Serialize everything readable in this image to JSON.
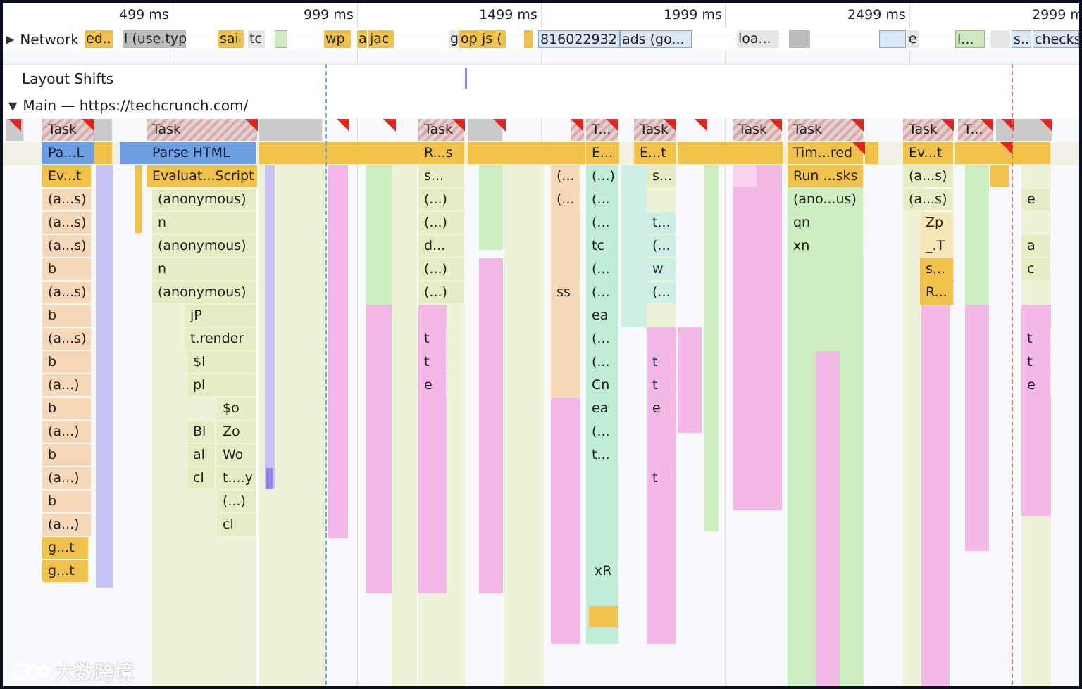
{
  "ruler": {
    "ticks": [
      "499 ms",
      "999 ms",
      "1499 ms",
      "1999 ms",
      "2499 ms",
      "2999 ms"
    ]
  },
  "tracks": {
    "network": "Network",
    "layout_shifts": "Layout Shifts",
    "main": "Main — https://techcrunch.com/"
  },
  "network_bars": [
    "ed...",
    "l (use.typ",
    "sai",
    "tc",
    "wp",
    "a",
    "jac",
    "g",
    "op",
    "js (",
    "816022932",
    "ads (go...",
    "loa...",
    "e",
    "l...",
    "s..",
    "checks"
  ],
  "flame": {
    "task_label": "Task",
    "task_short": "T...",
    "row1": [
      "Pa...L",
      "Parse HTML",
      "R...s",
      "E...",
      "E...t",
      "Tim...red",
      "Ev...t"
    ],
    "col_a": [
      "Ev...t",
      "(a...s)",
      "(a...s)",
      "(a...s)",
      "b",
      "(a...s)",
      "b",
      "(a...s)",
      "b",
      "(a...)",
      "b",
      "(a...)",
      "b",
      "(a...)",
      "b",
      "(a...)",
      "g...t",
      "g...t"
    ],
    "col_b": [
      "Evaluat...Script",
      "(anonymous)",
      "n",
      "(anonymous)",
      "n",
      "(anonymous)",
      "jP",
      "t.render",
      "$l",
      "pl",
      "$o",
      "Bl",
      "Zo",
      "al",
      "Wo",
      "cl",
      "t....y",
      "(...)",
      "cl"
    ],
    "col_c": [
      "s...",
      "(...)",
      "(...)",
      "d...",
      "(...)",
      "(...)",
      "t",
      "t",
      "e"
    ],
    "col_d": [
      "(...",
      "(...",
      "ss"
    ],
    "col_e": [
      "(...)",
      "(...",
      "(...",
      "tc",
      "(...",
      "(...",
      "ea",
      "(...",
      "(...",
      "Cn",
      "ea",
      "(...",
      "t...",
      "xR"
    ],
    "col_f": [
      "s...",
      "t...",
      "(...",
      "w",
      "(...",
      "t",
      "t",
      "e",
      "t"
    ],
    "col_g": [
      "Run ...sks",
      "(ano...us)",
      "qn",
      "xn"
    ],
    "col_h": [
      "(a...s)",
      "(a...s)",
      "Zp",
      "_.T",
      "s...",
      "R..."
    ],
    "col_i": [
      "e",
      "a",
      "c",
      "t",
      "t",
      "e"
    ]
  },
  "watermark": "大数跨境"
}
